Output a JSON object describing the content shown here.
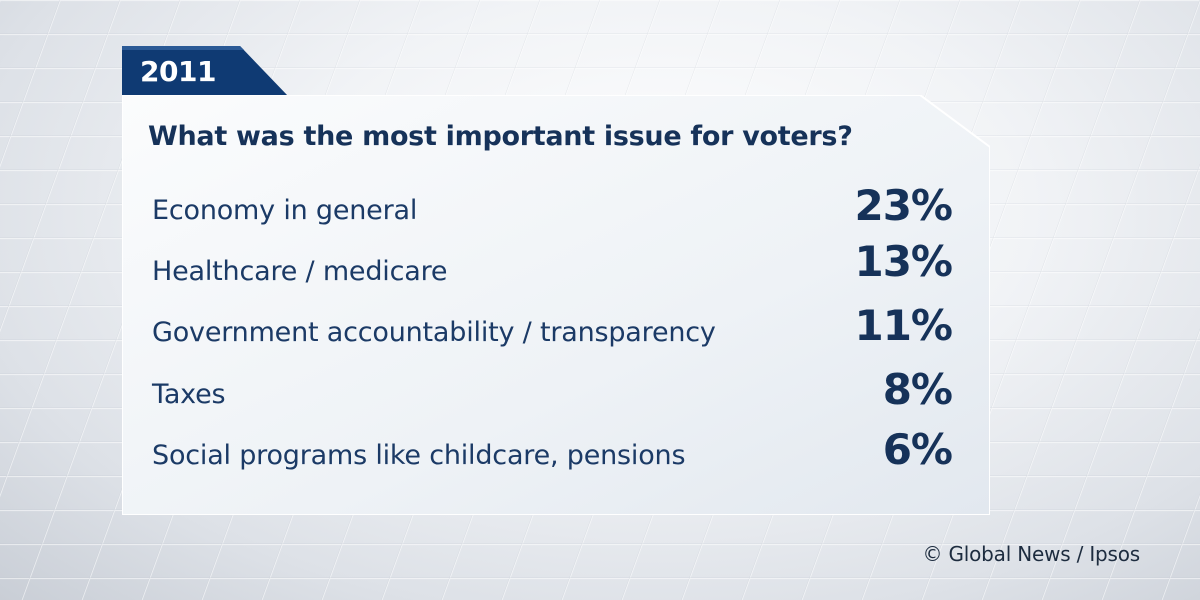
{
  "year_tab": "2011",
  "chart_data": {
    "type": "table",
    "title": "What was the most important issue for voters?",
    "rows": [
      {
        "label": "Economy in general",
        "value": "23%"
      },
      {
        "label": "Healthcare / medicare",
        "value": "13%"
      },
      {
        "label": "Government accountability / transparency",
        "value": "11%"
      },
      {
        "label": "Taxes",
        "value": "8%"
      },
      {
        "label": "Social programs like childcare, pensions",
        "value": "6%"
      }
    ],
    "values": [
      23,
      13,
      11,
      8,
      6
    ]
  },
  "credit": "© Global News / Ipsos",
  "colors": {
    "tab_blue": "#0f3a73",
    "text_navy": "#163259",
    "card_fill": "#f4f7fa"
  }
}
